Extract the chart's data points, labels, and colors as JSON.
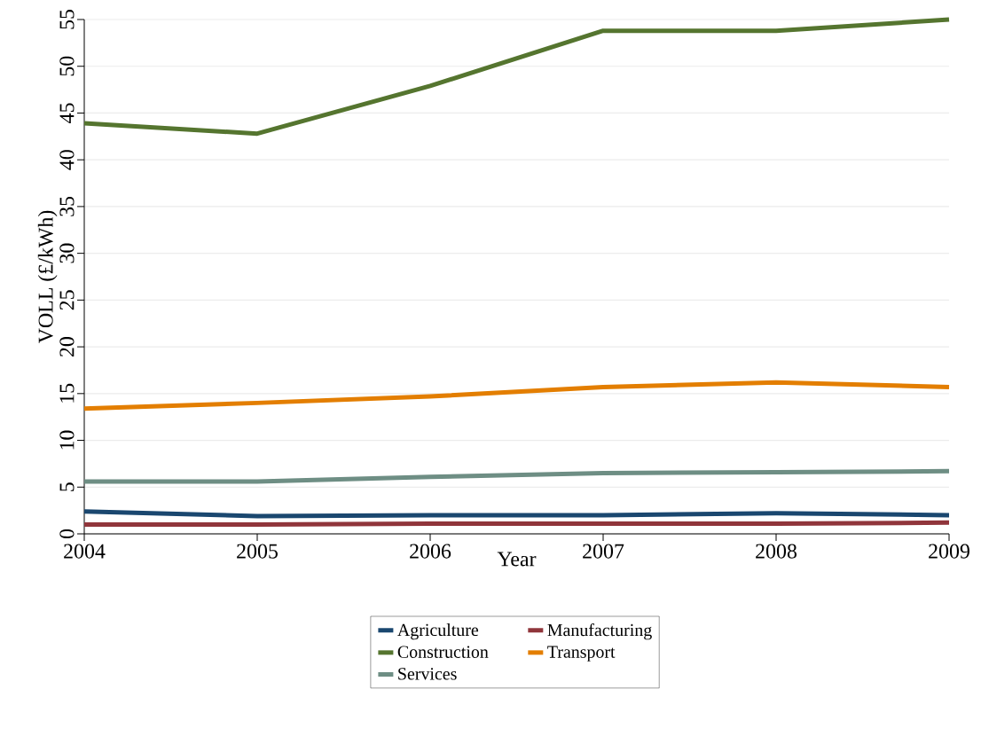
{
  "chart_data": {
    "type": "line",
    "xlabel": "Year",
    "ylabel": "VOLL (£/kWh)",
    "x": [
      2004,
      2005,
      2006,
      2007,
      2008,
      2009
    ],
    "series": [
      {
        "name": "Agriculture",
        "color": "#1a476f",
        "values": [
          2.4,
          1.9,
          2.0,
          2.0,
          2.2,
          2.0
        ]
      },
      {
        "name": "Manufacturing",
        "color": "#90353b",
        "values": [
          1.0,
          1.0,
          1.1,
          1.1,
          1.1,
          1.2
        ]
      },
      {
        "name": "Construction",
        "color": "#55752f",
        "values": [
          43.9,
          42.8,
          47.9,
          53.8,
          53.8,
          55.0
        ]
      },
      {
        "name": "Transport",
        "color": "#e37e00",
        "values": [
          13.4,
          14.0,
          14.7,
          15.7,
          16.2,
          15.7
        ]
      },
      {
        "name": "Services",
        "color": "#6e8e84",
        "values": [
          5.6,
          5.6,
          6.1,
          6.5,
          6.6,
          6.7
        ]
      }
    ],
    "xlim": [
      2004,
      2009
    ],
    "xticks": [
      2004,
      2005,
      2006,
      2007,
      2008,
      2009
    ],
    "ylim": [
      0,
      55
    ],
    "yticks": [
      0,
      5,
      10,
      15,
      20,
      25,
      30,
      35,
      40,
      45,
      50,
      55
    ],
    "grid": "y",
    "legend": "bottom",
    "marker": "none",
    "line_style": "solid"
  }
}
